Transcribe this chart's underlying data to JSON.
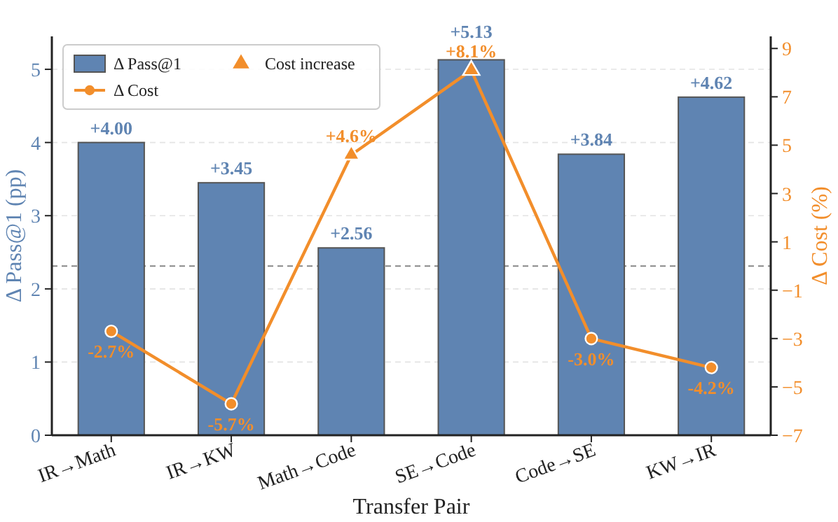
{
  "chart_data": {
    "type": "bar",
    "xlabel": "Transfer Pair",
    "ylabel": "Δ Pass@1 (pp)",
    "y2label": "Δ Cost (%)",
    "categories": [
      "IR→Math",
      "IR→KW",
      "Math→Code",
      "SE→Code",
      "Code→SE",
      "KW→IR"
    ],
    "series": [
      {
        "name": "Δ Pass@1",
        "color": "#5f84b2",
        "values": [
          4.0,
          3.45,
          2.56,
          5.13,
          3.84,
          4.62
        ],
        "value_labels": [
          "+4.00",
          "+3.45",
          "+2.56",
          "+5.13",
          "+3.84",
          "+4.62"
        ]
      },
      {
        "name": "Δ Cost",
        "type": "line",
        "axis": "y2",
        "color": "#f28e2b",
        "marker": "circle",
        "line_style": "solid",
        "values": [
          -2.7,
          -5.7,
          4.6,
          8.1,
          -3.0,
          -4.2
        ],
        "value_labels": [
          "-2.7%",
          "-5.7%",
          "+4.6%",
          "+8.1%",
          "-3.0%",
          "-4.2%"
        ]
      },
      {
        "name": "Cost increase",
        "type": "scatter",
        "axis": "y2",
        "color": "#f28e2b",
        "marker": "triangle",
        "values": [
          null,
          null,
          4.6,
          8.1,
          null,
          null
        ]
      }
    ],
    "ylim": [
      0,
      5.45
    ],
    "yticks": [
      0,
      1,
      2,
      3,
      4,
      5
    ],
    "y2lim": [
      -7,
      9.5
    ],
    "y2ticks": [
      {
        "value": -7,
        "label": "−7"
      },
      {
        "value": -5,
        "label": "−5"
      },
      {
        "value": -3,
        "label": "−3"
      },
      {
        "value": -1,
        "label": "−1"
      },
      1,
      3,
      5,
      7,
      9
    ],
    "ref_lines": [
      {
        "axis": "y2",
        "value": 0,
        "color": "#888888",
        "line_style": "dashed"
      }
    ],
    "grid": "y",
    "legend": "top left"
  }
}
